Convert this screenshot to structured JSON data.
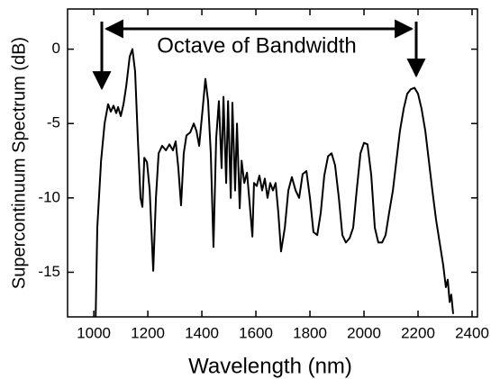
{
  "chart_data": {
    "type": "line",
    "annotation": "Octave of Bandwidth",
    "x_label": "Wavelength (nm)",
    "y_label": "Supercontinuum Spectrum (dB)",
    "xlim": [
      903,
      2420
    ],
    "xticks": [
      1000,
      1200,
      1400,
      1600,
      1800,
      2000,
      2200,
      2400
    ],
    "ylim": [
      -18,
      2.7
    ],
    "yticks": [
      -15,
      -10,
      -5,
      0
    ],
    "grid": false,
    "x": [
      1007,
      1013,
      1027,
      1040,
      1053,
      1063,
      1073,
      1083,
      1090,
      1100,
      1110,
      1120,
      1133,
      1143,
      1153,
      1163,
      1173,
      1180,
      1187,
      1197,
      1207,
      1220,
      1230,
      1240,
      1253,
      1267,
      1280,
      1293,
      1303,
      1313,
      1323,
      1333,
      1343,
      1357,
      1370,
      1380,
      1390,
      1403,
      1413,
      1423,
      1433,
      1443,
      1453,
      1463,
      1473,
      1480,
      1490,
      1497,
      1507,
      1513,
      1523,
      1530,
      1540,
      1547,
      1557,
      1567,
      1577,
      1587,
      1593,
      1603,
      1613,
      1623,
      1633,
      1643,
      1653,
      1663,
      1673,
      1683,
      1693,
      1707,
      1720,
      1733,
      1747,
      1760,
      1773,
      1787,
      1800,
      1813,
      1827,
      1840,
      1853,
      1867,
      1880,
      1893,
      1907,
      1920,
      1933,
      1947,
      1960,
      1973,
      1987,
      2000,
      2013,
      2027,
      2040,
      2053,
      2067,
      2080,
      2093,
      2107,
      2120,
      2133,
      2147,
      2160,
      2173,
      2187,
      2200,
      2213,
      2227,
      2240,
      2253,
      2267,
      2280,
      2293,
      2303,
      2310,
      2317,
      2323,
      2330
    ],
    "series": [
      {
        "color": "#000000",
        "values": [
          -18,
          -12,
          -7.5,
          -5,
          -3.7,
          -4.2,
          -3.8,
          -4.3,
          -3.9,
          -4.5,
          -3.7,
          -2.5,
          -0.5,
          0,
          -1.5,
          -6,
          -10,
          -10.6,
          -7.3,
          -7.6,
          -9.5,
          -14.9,
          -10,
          -7,
          -6.5,
          -6.8,
          -6.4,
          -6.8,
          -6.2,
          -8,
          -10.5,
          -7,
          -5.8,
          -5.6,
          -5,
          -5.5,
          -6.5,
          -4,
          -2,
          -3.5,
          -7,
          -13.3,
          -6,
          -3.5,
          -8,
          -3.2,
          -9,
          -3.5,
          -10,
          -3.6,
          -9.5,
          -5,
          -10.7,
          -7.5,
          -9,
          -8.3,
          -10.4,
          -12.6,
          -9,
          -9.2,
          -8.5,
          -9.5,
          -8.7,
          -10,
          -9,
          -9.5,
          -9,
          -11,
          -13.6,
          -12,
          -9.5,
          -8.6,
          -9.5,
          -10,
          -8.4,
          -8.2,
          -10,
          -12.3,
          -12.5,
          -11,
          -8.5,
          -7.2,
          -7,
          -7.8,
          -10,
          -12.5,
          -13,
          -12.7,
          -12,
          -9.5,
          -7,
          -6.3,
          -6.4,
          -8.5,
          -12,
          -13,
          -13,
          -12.5,
          -11,
          -9.5,
          -7.5,
          -5.5,
          -4,
          -3,
          -2.7,
          -2.6,
          -3,
          -4,
          -5.5,
          -7.5,
          -9.5,
          -11.5,
          -13,
          -14.5,
          -16,
          -15.5,
          -17,
          -16.5,
          -17.8
        ]
      }
    ]
  }
}
